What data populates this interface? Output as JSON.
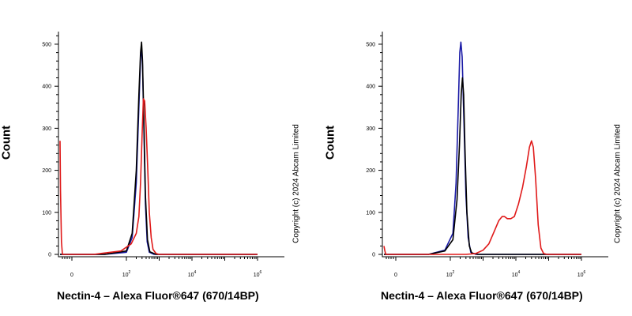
{
  "chart_data": [
    {
      "type": "line",
      "xlabel": "Nectin-4 – Alexa Fluor®647 (670/14BP)",
      "ylabel": "Count",
      "copyright": "Copyright (c) 2024 Abcam Limited",
      "x_scale": "biexponential",
      "xlim": [
        -500,
        1000000
      ],
      "ylim": [
        0,
        530
      ],
      "y_ticks": [
        0,
        100,
        200,
        300,
        400,
        500
      ],
      "x_ticks": [
        {
          "base": "0",
          "exp": "",
          "value": 0
        },
        {
          "base": "10",
          "exp": "2",
          "value": 100
        },
        {
          "base": "10",
          "exp": "4",
          "value": 10000
        },
        {
          "base": "10",
          "exp": "6",
          "value": 1000000
        }
      ],
      "series": [
        {
          "color": "#1a1aa6",
          "points": [
            [
              -500,
              0
            ],
            [
              60,
              0
            ],
            [
              100,
              5
            ],
            [
              150,
              40
            ],
            [
              200,
              170
            ],
            [
              240,
              350
            ],
            [
              270,
              470
            ],
            [
              290,
              485
            ],
            [
              310,
              450
            ],
            [
              340,
              300
            ],
            [
              380,
              120
            ],
            [
              430,
              30
            ],
            [
              500,
              5
            ],
            [
              700,
              0
            ],
            [
              1000000,
              0
            ]
          ]
        },
        {
          "color": "#000000",
          "points": [
            [
              -500,
              0
            ],
            [
              60,
              0
            ],
            [
              100,
              8
            ],
            [
              150,
              50
            ],
            [
              200,
              200
            ],
            [
              240,
              380
            ],
            [
              270,
              480
            ],
            [
              290,
              505
            ],
            [
              310,
              460
            ],
            [
              340,
              320
            ],
            [
              380,
              140
            ],
            [
              440,
              35
            ],
            [
              520,
              6
            ],
            [
              800,
              0
            ],
            [
              1000000,
              0
            ]
          ]
        },
        {
          "color": "#e01a1a",
          "points": [
            [
              -500,
              270
            ],
            [
              -480,
              150
            ],
            [
              -440,
              30
            ],
            [
              -400,
              0
            ],
            [
              40,
              0
            ],
            [
              90,
              8
            ],
            [
              140,
              25
            ],
            [
              200,
              50
            ],
            [
              240,
              90
            ],
            [
              270,
              170
            ],
            [
              300,
              280
            ],
            [
              330,
              370
            ],
            [
              360,
              365
            ],
            [
              400,
              300
            ],
            [
              450,
              200
            ],
            [
              500,
              100
            ],
            [
              570,
              40
            ],
            [
              650,
              12
            ],
            [
              800,
              2
            ],
            [
              1000,
              0
            ],
            [
              1000000,
              0
            ]
          ]
        }
      ]
    },
    {
      "type": "line",
      "xlabel": "Nectin-4 – Alexa Fluor®647 (670/14BP)",
      "ylabel": "Count",
      "copyright": "Copyright (c) 2024 Abcam Limited",
      "x_scale": "biexponential",
      "xlim": [
        -500,
        1000000
      ],
      "ylim": [
        0,
        530
      ],
      "y_ticks": [
        0,
        100,
        200,
        300,
        400,
        500
      ],
      "x_ticks": [
        {
          "base": "0",
          "exp": "",
          "value": 0
        },
        {
          "base": "10",
          "exp": "2",
          "value": 100
        },
        {
          "base": "10",
          "exp": "4",
          "value": 10000
        },
        {
          "base": "10",
          "exp": "6",
          "value": 1000000
        }
      ],
      "series": [
        {
          "color": "#1a1aa6",
          "points": [
            [
              -500,
              0
            ],
            [
              60,
              0
            ],
            [
              90,
              10
            ],
            [
              120,
              50
            ],
            [
              150,
              170
            ],
            [
              175,
              350
            ],
            [
              195,
              480
            ],
            [
              210,
              505
            ],
            [
              230,
              470
            ],
            [
              260,
              320
            ],
            [
              300,
              140
            ],
            [
              350,
              40
            ],
            [
              420,
              5
            ],
            [
              600,
              0
            ],
            [
              1000000,
              0
            ]
          ]
        },
        {
          "color": "#000000",
          "points": [
            [
              -500,
              0
            ],
            [
              60,
              0
            ],
            [
              90,
              8
            ],
            [
              120,
              35
            ],
            [
              160,
              130
            ],
            [
              190,
              260
            ],
            [
              215,
              380
            ],
            [
              235,
              420
            ],
            [
              255,
              380
            ],
            [
              280,
              250
            ],
            [
              320,
              100
            ],
            [
              380,
              20
            ],
            [
              450,
              3
            ],
            [
              700,
              0
            ],
            [
              1000000,
              0
            ]
          ]
        },
        {
          "color": "#e01a1a",
          "points": [
            [
              -500,
              20
            ],
            [
              -460,
              8
            ],
            [
              -420,
              0
            ],
            [
              300,
              0
            ],
            [
              600,
              2
            ],
            [
              1000,
              10
            ],
            [
              1500,
              25
            ],
            [
              2200,
              55
            ],
            [
              3000,
              80
            ],
            [
              3800,
              90
            ],
            [
              4500,
              90
            ],
            [
              5500,
              85
            ],
            [
              7000,
              85
            ],
            [
              9000,
              90
            ],
            [
              12000,
              120
            ],
            [
              16000,
              160
            ],
            [
              21000,
              210
            ],
            [
              26000,
              255
            ],
            [
              30000,
              270
            ],
            [
              34000,
              255
            ],
            [
              40000,
              180
            ],
            [
              48000,
              70
            ],
            [
              58000,
              15
            ],
            [
              70000,
              2
            ],
            [
              90000,
              0
            ],
            [
              1000000,
              0
            ]
          ]
        }
      ]
    }
  ]
}
